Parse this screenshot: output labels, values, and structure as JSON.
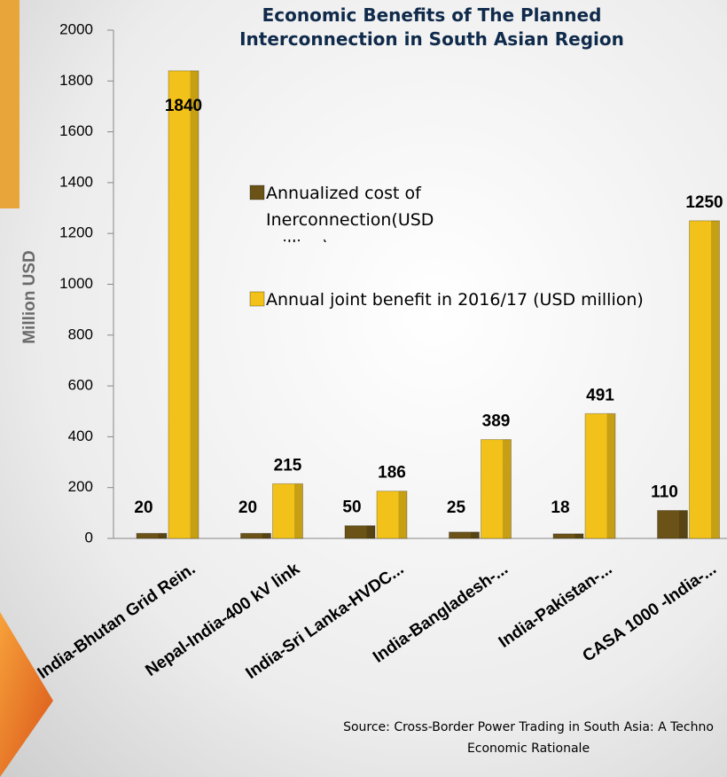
{
  "chart_data": {
    "type": "bar",
    "title": "Economic Benefits of The Planned Interconnection in South Asian Region",
    "y_label": "Million USD",
    "categories": [
      "India-Bhutan Grid Rein.",
      "Nepal-India-400 kV link",
      "India-Sri Lanka-HVDC...",
      "India-Bangladesh-...",
      "India-Pakistan-...",
      "CASA 1000 -India-..."
    ],
    "series": [
      {
        "name": "Annualized cost of Inerconnection(USD million)",
        "color": "#6b5317",
        "values": [
          20,
          20,
          50,
          25,
          18,
          110
        ]
      },
      {
        "name": "Annual joint benefit in 2016/17 (USD million)",
        "color": "#f2c21a",
        "values": [
          1840,
          215,
          186,
          389,
          491,
          1250
        ]
      }
    ],
    "ylim": [
      0,
      2000
    ],
    "yticks": [
      0,
      200,
      400,
      600,
      800,
      1000,
      1200,
      1400,
      1600,
      1800,
      2000
    ],
    "grid": false,
    "source": "Source: Cross-Border Power Trading in South Asia: A Techno Economic Rationale"
  }
}
